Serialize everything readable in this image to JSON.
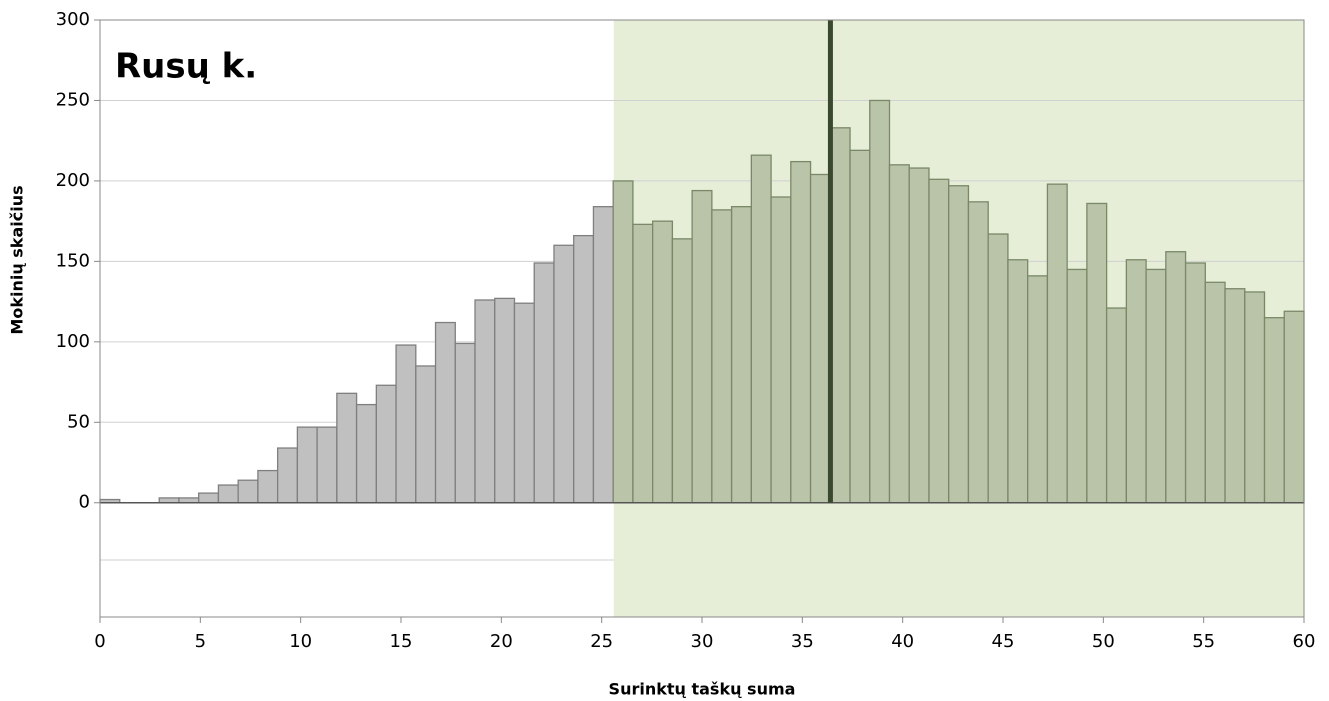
{
  "chart_data": {
    "type": "bar",
    "title": "Rusų k.",
    "x_label": "Surinktų taškų suma",
    "y_label": "Mokinių skaičius",
    "x": [
      0,
      1,
      2,
      3,
      4,
      5,
      6,
      7,
      8,
      9,
      10,
      11,
      12,
      13,
      14,
      15,
      16,
      17,
      18,
      19,
      20,
      21,
      22,
      23,
      24,
      25,
      26,
      27,
      28,
      29,
      30,
      31,
      32,
      33,
      34,
      35,
      36,
      37,
      38,
      39,
      40,
      41,
      42,
      43,
      44,
      45,
      46,
      47,
      48,
      49,
      50,
      51,
      52,
      53,
      54,
      55,
      56,
      57,
      58,
      59,
      60
    ],
    "values": [
      2,
      0,
      0,
      3,
      3,
      6,
      11,
      14,
      20,
      34,
      47,
      47,
      68,
      61,
      73,
      98,
      85,
      112,
      99,
      126,
      127,
      124,
      149,
      160,
      166,
      184,
      200,
      173,
      175,
      164,
      194,
      182,
      184,
      216,
      190,
      212,
      204,
      233,
      219,
      250,
      210,
      208,
      201,
      197,
      187,
      167,
      151,
      141,
      198,
      145,
      186,
      121,
      151,
      145,
      156,
      149,
      137,
      133,
      131,
      115,
      119
    ],
    "color": "#c0c0c0",
    "highlight_color": "#b9c4a9",
    "highlight_region_color": "#e6eed8",
    "highlight_from": 25.6,
    "marker_x": 36.4,
    "marker_color": "#3a4830",
    "xlim": [
      0,
      60
    ],
    "xticks": [
      0,
      5,
      10,
      15,
      20,
      25,
      30,
      35,
      40,
      45,
      50,
      55,
      60
    ],
    "ylim": [
      -71,
      300
    ],
    "yticks": [
      0,
      50,
      100,
      150,
      200,
      250,
      300
    ],
    "grid": true
  }
}
